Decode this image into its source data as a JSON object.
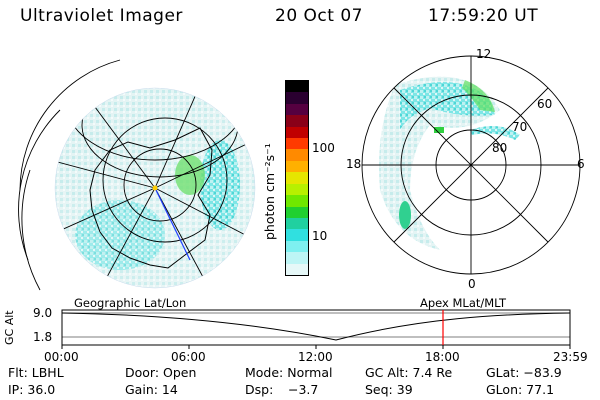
{
  "header": {
    "instrument": "Ultraviolet Imager",
    "date": "20 Oct 07",
    "time": "17:59:20 UT"
  },
  "colorbar": {
    "unit_label": "photon cm⁻²s⁻¹",
    "ticks": [
      "100",
      "10"
    ],
    "colors": [
      "#000000",
      "#2a0030",
      "#550040",
      "#8a0018",
      "#c00000",
      "#ff3a00",
      "#ff8a00",
      "#ffb000",
      "#e6e600",
      "#b8f000",
      "#70e800",
      "#20d030",
      "#20d0a0",
      "#30e0e0",
      "#7ef0f0",
      "#bdf5f5",
      "#e6f8f8"
    ]
  },
  "left_map": {
    "projection": "Geographic Lat/Lon"
  },
  "right_dial": {
    "projection": "Apex MLat/MLT",
    "mlt_labels": {
      "top": "12",
      "left": "18",
      "right": "6",
      "bottom": "0"
    },
    "lat_labels": [
      "60",
      "70",
      "80"
    ]
  },
  "altitude_plot": {
    "ylabel": "GC Alt",
    "yticks": [
      "9.0",
      "1.8"
    ],
    "xticks": [
      "00:00",
      "06:00",
      "12:00",
      "18:00",
      "23:59"
    ],
    "current_time_fraction": 0.75
  },
  "info": {
    "filter": "Flt: LBHL",
    "door": "Door: Open",
    "mode": "Mode: Normal",
    "gc_alt": "GC Alt: 7.4 Re",
    "glat": "GLat: −83.9",
    "ip": "IP: 36.0",
    "gain": "Gain: 14",
    "dsp_label": "Dsp:",
    "dsp_value": "−3.7",
    "seq": "Seq: 39",
    "glon": "GLon: 77.1"
  }
}
